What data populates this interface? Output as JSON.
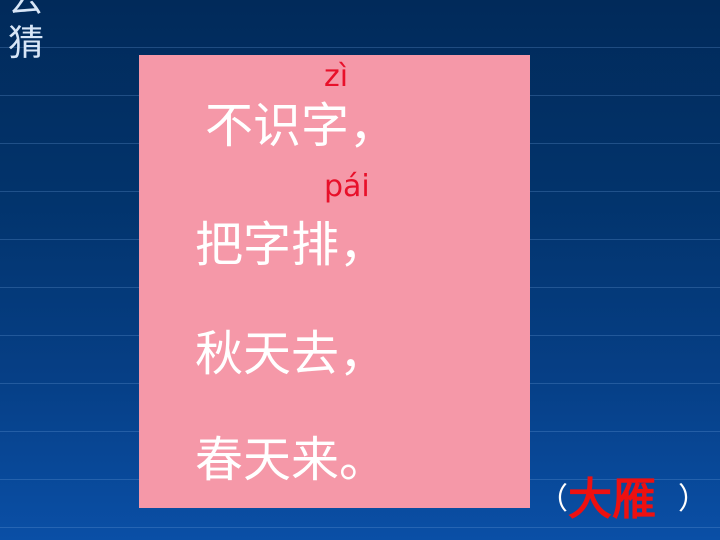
{
  "side_title": "去猜",
  "riddle": {
    "lines": [
      "不识字，",
      "把字排，",
      "秋天去，",
      "春天来。"
    ],
    "pinyin": [
      "zì",
      "pái"
    ]
  },
  "answer": {
    "open_paren": "（",
    "word": "大雁",
    "close_paren": "）"
  },
  "colors": {
    "background": "#02336b",
    "box": "#f598a8",
    "text": "#ffffff",
    "pinyin": "#e8102a",
    "answer": "#ee1010"
  }
}
